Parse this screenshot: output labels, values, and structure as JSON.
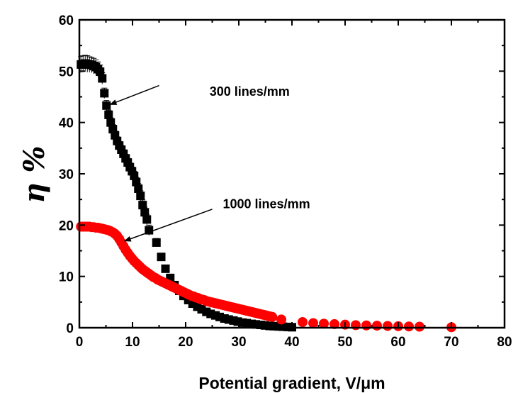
{
  "chart_data": {
    "type": "scatter",
    "title": "",
    "xlabel": "Potential gradient,  V/μm",
    "ylabel": "η %",
    "xlim": [
      0,
      80
    ],
    "ylim": [
      0,
      60
    ],
    "xticks": [
      0,
      10,
      20,
      30,
      40,
      50,
      60,
      70,
      80
    ],
    "yticks": [
      0,
      10,
      20,
      30,
      40,
      50,
      60
    ],
    "grid": false,
    "legend": "none",
    "series": [
      {
        "name": "300 lines/mm",
        "marker": "square",
        "color": "#000000",
        "error_bars": true,
        "points": [
          [
            0.3,
            51.3
          ],
          [
            0.7,
            51.4
          ],
          [
            1.1,
            51.5
          ],
          [
            1.5,
            51.4
          ],
          [
            1.9,
            51.3
          ],
          [
            2.3,
            51.2
          ],
          [
            2.7,
            51.0
          ],
          [
            3.1,
            50.8
          ],
          [
            3.5,
            50.4
          ],
          [
            3.9,
            49.9
          ],
          [
            4.3,
            48.6
          ],
          [
            4.7,
            45.7
          ],
          [
            5.1,
            43.3
          ],
          [
            5.5,
            41.5
          ],
          [
            5.9,
            40.0
          ],
          [
            6.3,
            38.7
          ],
          [
            6.7,
            37.5
          ],
          [
            7.1,
            36.4
          ],
          [
            7.5,
            35.5
          ],
          [
            7.9,
            34.7
          ],
          [
            8.3,
            33.9
          ],
          [
            8.7,
            33.0
          ],
          [
            9.1,
            32.2
          ],
          [
            9.5,
            31.3
          ],
          [
            9.9,
            30.5
          ],
          [
            10.3,
            29.6
          ],
          [
            10.7,
            28.4
          ],
          [
            11.1,
            27.1
          ],
          [
            11.5,
            25.7
          ],
          [
            11.9,
            23.9
          ],
          [
            12.3,
            22.5
          ],
          [
            12.7,
            21.1
          ],
          [
            13.1,
            19.0
          ],
          [
            14.5,
            16.6
          ],
          [
            15.4,
            13.8
          ],
          [
            16.2,
            11.5
          ],
          [
            17.1,
            9.7
          ],
          [
            17.9,
            8.3
          ],
          [
            18.8,
            7.2
          ],
          [
            19.6,
            6.2
          ],
          [
            20.5,
            5.4
          ],
          [
            21.3,
            4.7
          ],
          [
            22.2,
            4.1
          ],
          [
            23.0,
            3.6
          ],
          [
            23.9,
            3.1
          ],
          [
            24.7,
            2.7
          ],
          [
            25.6,
            2.4
          ],
          [
            26.4,
            2.1
          ],
          [
            27.3,
            1.8
          ],
          [
            28.1,
            1.6
          ],
          [
            29.0,
            1.4
          ],
          [
            29.8,
            1.2
          ],
          [
            30.7,
            1.0
          ],
          [
            31.5,
            0.9
          ],
          [
            32.4,
            0.75
          ],
          [
            33.2,
            0.65
          ],
          [
            34.1,
            0.55
          ],
          [
            34.9,
            0.45
          ],
          [
            35.8,
            0.35
          ],
          [
            36.6,
            0.3
          ],
          [
            37.5,
            0.25
          ],
          [
            38.3,
            0.2
          ],
          [
            39.2,
            0.15
          ],
          [
            40.0,
            0.1
          ]
        ],
        "errors": [
          1.6,
          1.6,
          1.6,
          1.6,
          1.5,
          1.5,
          1.5,
          1.4,
          1.4,
          1.3,
          1.1,
          1.0,
          1.0,
          0.9,
          0.9,
          0.9,
          0.8,
          0.8,
          0.8,
          0.8,
          0.8,
          0.8,
          0.8,
          0.8,
          0.8,
          0.9,
          0.9,
          1.0,
          1.0,
          1.0,
          1.0,
          1.0,
          1.0,
          0.8,
          0.7,
          0.6,
          0.5,
          0.5,
          0.4,
          0.4,
          0.4,
          0.3,
          0.3,
          0.3,
          0.3,
          0.2,
          0.2,
          0.2,
          0.2,
          0.2,
          0.2,
          0.1,
          0.1,
          0.1,
          0.1,
          0.1,
          0.1,
          0.1,
          0.1,
          0.1,
          0.1,
          0.1,
          0.1,
          0.1
        ]
      },
      {
        "name": "1000 lines/mm",
        "marker": "circle",
        "color": "#ff0000",
        "error_bars": false,
        "points": [
          [
            0.3,
            19.7
          ],
          [
            0.7,
            19.7
          ],
          [
            1.1,
            19.7
          ],
          [
            1.5,
            19.7
          ],
          [
            1.9,
            19.7
          ],
          [
            2.3,
            19.6
          ],
          [
            2.7,
            19.6
          ],
          [
            3.1,
            19.5
          ],
          [
            3.5,
            19.5
          ],
          [
            3.9,
            19.4
          ],
          [
            4.3,
            19.3
          ],
          [
            4.7,
            19.2
          ],
          [
            5.1,
            19.1
          ],
          [
            5.5,
            19.0
          ],
          [
            5.9,
            18.8
          ],
          [
            6.3,
            18.6
          ],
          [
            6.7,
            18.3
          ],
          [
            7.1,
            17.9
          ],
          [
            7.5,
            17.3
          ],
          [
            7.9,
            16.6
          ],
          [
            8.3,
            15.9
          ],
          [
            8.7,
            15.2
          ],
          [
            9.1,
            14.6
          ],
          [
            9.5,
            14.0
          ],
          [
            9.9,
            13.5
          ],
          [
            10.3,
            13.0
          ],
          [
            10.7,
            12.6
          ],
          [
            11.1,
            12.2
          ],
          [
            11.5,
            11.8
          ],
          [
            11.9,
            11.4
          ],
          [
            12.3,
            11.1
          ],
          [
            12.7,
            10.8
          ],
          [
            13.1,
            10.5
          ],
          [
            13.5,
            10.2
          ],
          [
            13.9,
            9.9
          ],
          [
            14.3,
            9.7
          ],
          [
            14.7,
            9.4
          ],
          [
            15.1,
            9.2
          ],
          [
            15.5,
            9.0
          ],
          [
            15.9,
            8.8
          ],
          [
            16.3,
            8.6
          ],
          [
            16.7,
            8.4
          ],
          [
            17.1,
            8.2
          ],
          [
            17.5,
            8.0
          ],
          [
            17.9,
            7.8
          ],
          [
            18.3,
            7.6
          ],
          [
            18.7,
            7.4
          ],
          [
            19.1,
            7.2
          ],
          [
            19.5,
            7.0
          ],
          [
            19.9,
            6.8
          ],
          [
            20.3,
            6.6
          ],
          [
            20.7,
            6.4
          ],
          [
            21.1,
            6.2
          ],
          [
            21.5,
            6.1
          ],
          [
            21.9,
            5.9
          ],
          [
            22.3,
            5.8
          ],
          [
            22.7,
            5.6
          ],
          [
            23.1,
            5.5
          ],
          [
            23.5,
            5.4
          ],
          [
            23.9,
            5.2
          ],
          [
            24.3,
            5.1
          ],
          [
            24.7,
            5.0
          ],
          [
            25.1,
            4.9
          ],
          [
            25.5,
            4.8
          ],
          [
            25.9,
            4.7
          ],
          [
            26.3,
            4.6
          ],
          [
            26.7,
            4.5
          ],
          [
            27.1,
            4.4
          ],
          [
            27.5,
            4.3
          ],
          [
            27.9,
            4.2
          ],
          [
            28.3,
            4.1
          ],
          [
            28.7,
            4.0
          ],
          [
            29.1,
            3.9
          ],
          [
            29.5,
            3.8
          ],
          [
            29.9,
            3.7
          ],
          [
            30.3,
            3.6
          ],
          [
            30.7,
            3.5
          ],
          [
            31.1,
            3.4
          ],
          [
            31.5,
            3.3
          ],
          [
            31.9,
            3.2
          ],
          [
            32.3,
            3.1
          ],
          [
            32.7,
            3.0
          ],
          [
            33.1,
            2.9
          ],
          [
            33.5,
            2.8
          ],
          [
            33.9,
            2.7
          ],
          [
            34.3,
            2.6
          ],
          [
            34.7,
            2.5
          ],
          [
            35.1,
            2.4
          ],
          [
            35.5,
            2.3
          ],
          [
            35.9,
            2.2
          ],
          [
            36.3,
            2.1
          ],
          [
            38.0,
            1.6
          ],
          [
            42.0,
            1.1
          ],
          [
            44.0,
            0.9
          ],
          [
            46.0,
            0.8
          ],
          [
            48.0,
            0.7
          ],
          [
            50.0,
            0.6
          ],
          [
            52.0,
            0.5
          ],
          [
            54.0,
            0.45
          ],
          [
            56.0,
            0.4
          ],
          [
            58.0,
            0.35
          ],
          [
            60.0,
            0.3
          ],
          [
            62.0,
            0.25
          ],
          [
            64.0,
            0.2
          ],
          [
            70.0,
            0.1
          ]
        ]
      }
    ],
    "annotations": [
      {
        "text": "300 lines/mm",
        "x": 24.5,
        "y": 45.2,
        "arrow_from": [
          15.0,
          47.2
        ],
        "arrow_to": [
          5.8,
          43.5
        ]
      },
      {
        "text": "1000 lines/mm",
        "x": 27.0,
        "y": 23.3,
        "arrow_from": [
          25.0,
          23.1
        ],
        "arrow_to": [
          8.5,
          16.9
        ]
      }
    ]
  }
}
